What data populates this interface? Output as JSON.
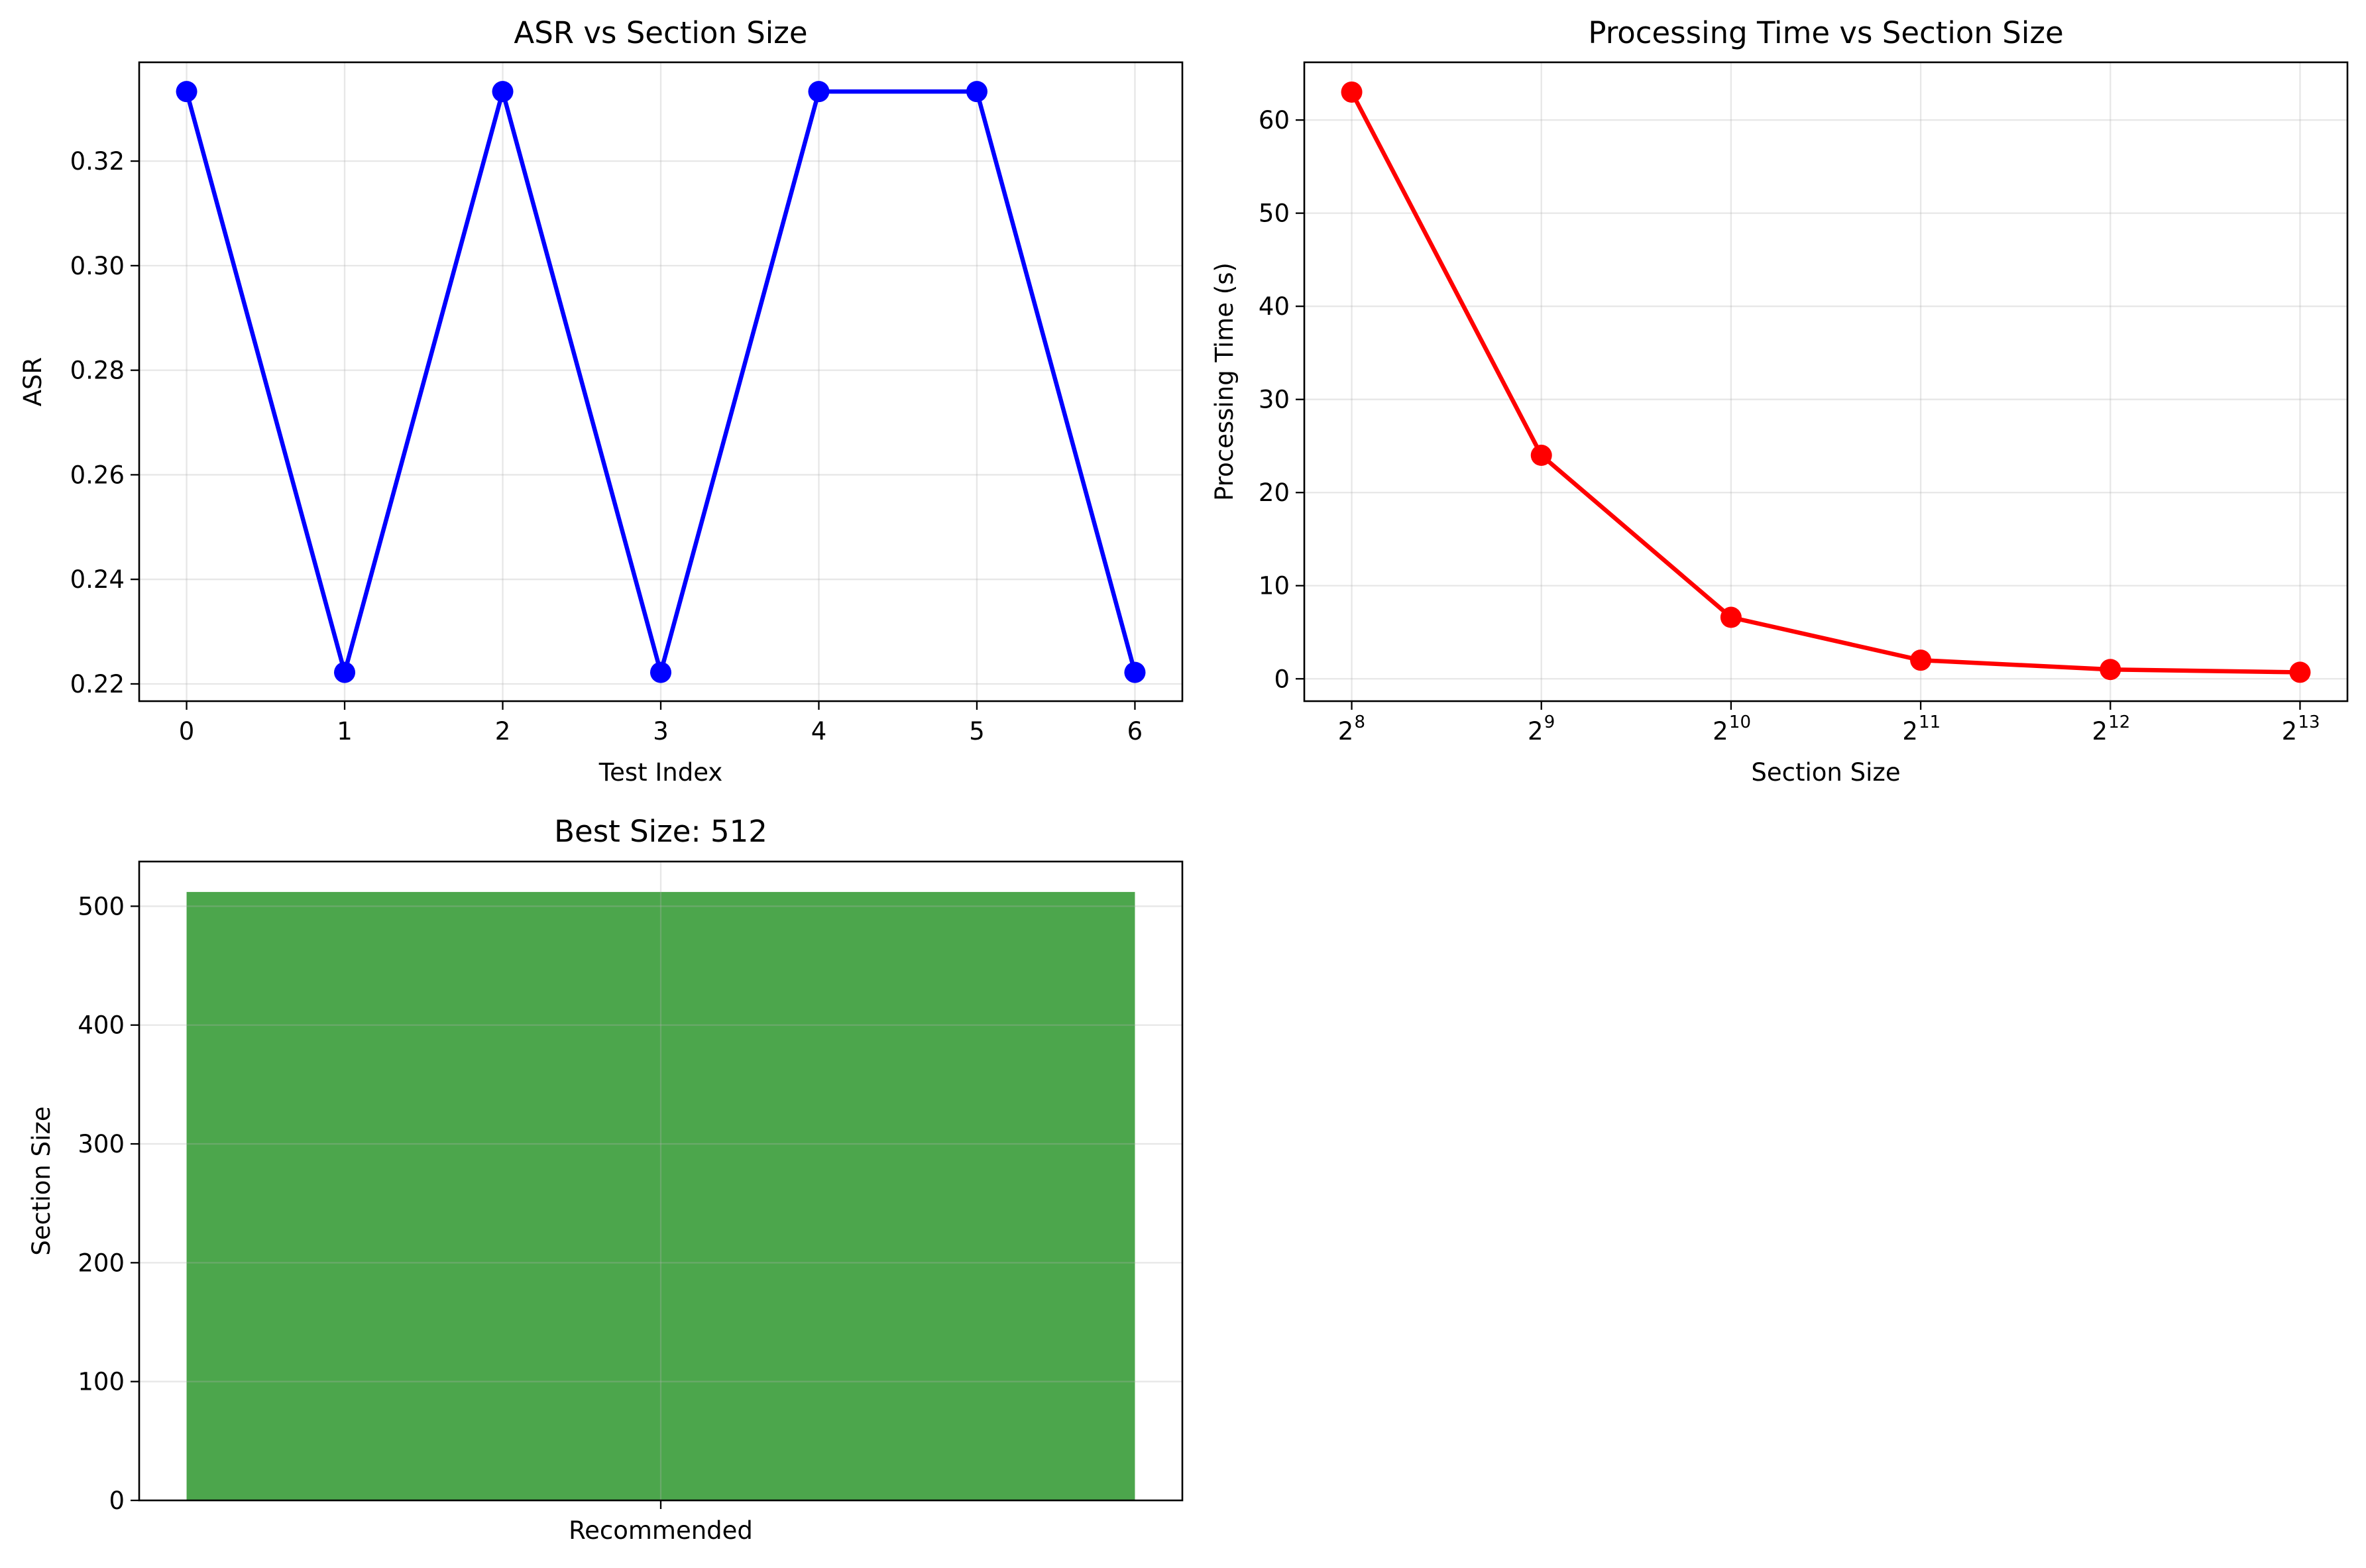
{
  "chart_data": [
    {
      "type": "line",
      "title": "ASR vs Section Size",
      "xlabel": "Test Index",
      "ylabel": "ASR",
      "x": [
        0,
        1,
        2,
        3,
        4,
        5,
        6
      ],
      "xticks": [
        "0",
        "1",
        "2",
        "3",
        "4",
        "5",
        "6"
      ],
      "xlim": [
        -0.3,
        6.3
      ],
      "series": [
        {
          "values": [
            0.3333,
            0.2222,
            0.3333,
            0.2222,
            0.3333,
            0.3333,
            0.2222
          ],
          "color": "#0000ff"
        }
      ],
      "yticks": [
        0.22,
        0.24,
        0.26,
        0.28,
        0.3,
        0.32
      ],
      "ytick_labels": [
        "0.22",
        "0.24",
        "0.26",
        "0.28",
        "0.30",
        "0.32"
      ],
      "ylim": [
        0.2167,
        0.3389
      ],
      "grid": true
    },
    {
      "type": "line",
      "title": "Processing Time vs Section Size",
      "xlabel": "Section Size",
      "ylabel": "Processing Time (s)",
      "x_scale": "log2",
      "x": [
        256,
        512,
        1024,
        2048,
        4096,
        8192
      ],
      "x_exponents": [
        8,
        9,
        10,
        11,
        12,
        13
      ],
      "xlim_exponent": [
        7.75,
        13.25
      ],
      "xtick_base": "2",
      "xtick_exponents": [
        "8",
        "9",
        "10",
        "11",
        "12",
        "13"
      ],
      "series": [
        {
          "values": [
            63.0,
            24.0,
            6.6,
            2.0,
            1.0,
            0.7
          ],
          "color": "#ff0000"
        }
      ],
      "yticks": [
        0,
        10,
        20,
        30,
        40,
        50,
        60
      ],
      "ytick_labels": [
        "0",
        "10",
        "20",
        "30",
        "40",
        "50",
        "60"
      ],
      "ylim": [
        -2.4,
        66.2
      ],
      "grid": true
    },
    {
      "type": "bar",
      "title": "Best Size: 512",
      "xlabel": "",
      "ylabel": "Section Size",
      "categories": [
        "Recommended"
      ],
      "values": [
        512
      ],
      "color": "#4ca64c",
      "yticks": [
        0,
        100,
        200,
        300,
        400,
        500
      ],
      "ytick_labels": [
        "0",
        "100",
        "200",
        "300",
        "400",
        "500"
      ],
      "ylim": [
        0,
        537.6
      ],
      "grid": true
    }
  ]
}
